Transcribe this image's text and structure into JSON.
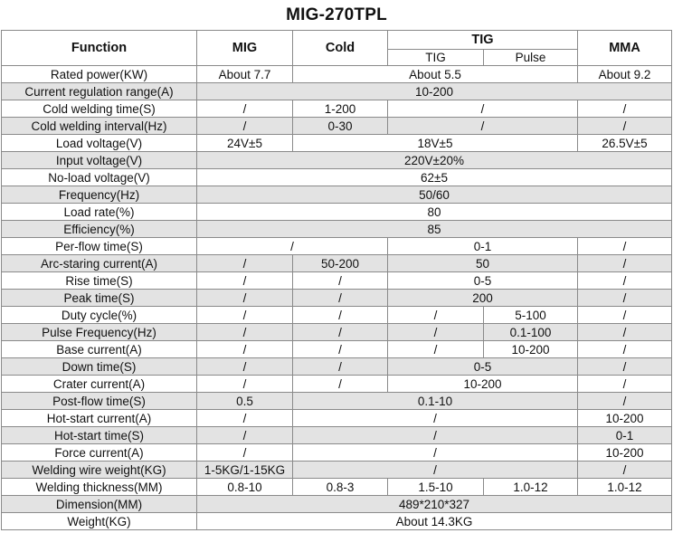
{
  "title": "MIG-270TPL",
  "header": {
    "function": "Function",
    "mig": "MIG",
    "cold": "Cold",
    "tig": "TIG",
    "tig_sub": "TIG",
    "pulse_sub": "Pulse",
    "mma": "MMA"
  },
  "rows": [
    {
      "label": "Rated power(KW)",
      "cells": [
        {
          "text": "About 7.7",
          "span": 1
        },
        {
          "text": "About 5.5",
          "span": 3
        },
        {
          "text": "About 9.2",
          "span": 1
        }
      ]
    },
    {
      "label": "Current regulation range(A)",
      "cells": [
        {
          "text": "10-200",
          "span": 5
        }
      ]
    },
    {
      "label": "Cold welding time(S)",
      "cells": [
        {
          "text": "/",
          "span": 1
        },
        {
          "text": "1-200",
          "span": 1
        },
        {
          "text": "/",
          "span": 2
        },
        {
          "text": "/",
          "span": 1
        }
      ]
    },
    {
      "label": "Cold welding interval(Hz)",
      "cells": [
        {
          "text": "/",
          "span": 1
        },
        {
          "text": "0-30",
          "span": 1
        },
        {
          "text": "/",
          "span": 2
        },
        {
          "text": "/",
          "span": 1
        }
      ]
    },
    {
      "label": "Load voltage(V)",
      "cells": [
        {
          "text": "24V±5",
          "span": 1
        },
        {
          "text": "18V±5",
          "span": 3
        },
        {
          "text": "26.5V±5",
          "span": 1
        }
      ]
    },
    {
      "label": "Input voltage(V)",
      "cells": [
        {
          "text": "220V±20%",
          "span": 5
        }
      ]
    },
    {
      "label": "No-load voltage(V)",
      "cells": [
        {
          "text": "62±5",
          "span": 5
        }
      ]
    },
    {
      "label": "Frequency(Hz)",
      "cells": [
        {
          "text": "50/60",
          "span": 5
        }
      ]
    },
    {
      "label": "Load rate(%)",
      "cells": [
        {
          "text": "80",
          "span": 5
        }
      ]
    },
    {
      "label": "Efficiency(%)",
      "cells": [
        {
          "text": "85",
          "span": 5
        }
      ]
    },
    {
      "label": "Per-flow time(S)",
      "cells": [
        {
          "text": "/",
          "span": 2
        },
        {
          "text": "0-1",
          "span": 2
        },
        {
          "text": "/",
          "span": 1
        }
      ]
    },
    {
      "label": "Arc-staring current(A)",
      "cells": [
        {
          "text": "/",
          "span": 1
        },
        {
          "text": "50-200",
          "span": 1
        },
        {
          "text": "50",
          "span": 2
        },
        {
          "text": "/",
          "span": 1
        }
      ]
    },
    {
      "label": "Rise time(S)",
      "cells": [
        {
          "text": "/",
          "span": 1
        },
        {
          "text": "/",
          "span": 1
        },
        {
          "text": "0-5",
          "span": 2
        },
        {
          "text": "/",
          "span": 1
        }
      ]
    },
    {
      "label": "Peak time(S)",
      "cells": [
        {
          "text": "/",
          "span": 1
        },
        {
          "text": "/",
          "span": 1
        },
        {
          "text": "200",
          "span": 2
        },
        {
          "text": "/",
          "span": 1
        }
      ]
    },
    {
      "label": "Duty cycle(%)",
      "cells": [
        {
          "text": "/",
          "span": 1
        },
        {
          "text": "/",
          "span": 1
        },
        {
          "text": "/",
          "span": 1
        },
        {
          "text": "5-100",
          "span": 1
        },
        {
          "text": "/",
          "span": 1
        }
      ]
    },
    {
      "label": "Pulse Frequency(Hz)",
      "cells": [
        {
          "text": "/",
          "span": 1
        },
        {
          "text": "/",
          "span": 1
        },
        {
          "text": "/",
          "span": 1
        },
        {
          "text": "0.1-100",
          "span": 1
        },
        {
          "text": "/",
          "span": 1
        }
      ]
    },
    {
      "label": "Base current(A)",
      "cells": [
        {
          "text": "/",
          "span": 1
        },
        {
          "text": "/",
          "span": 1
        },
        {
          "text": "/",
          "span": 1
        },
        {
          "text": "10-200",
          "span": 1
        },
        {
          "text": "/",
          "span": 1
        }
      ]
    },
    {
      "label": "Down time(S)",
      "cells": [
        {
          "text": "/",
          "span": 1
        },
        {
          "text": "/",
          "span": 1
        },
        {
          "text": "0-5",
          "span": 2
        },
        {
          "text": "/",
          "span": 1
        }
      ]
    },
    {
      "label": "Crater current(A)",
      "cells": [
        {
          "text": "/",
          "span": 1
        },
        {
          "text": "/",
          "span": 1
        },
        {
          "text": "10-200",
          "span": 2
        },
        {
          "text": "/",
          "span": 1
        }
      ]
    },
    {
      "label": "Post-flow time(S)",
      "cells": [
        {
          "text": "0.5",
          "span": 1
        },
        {
          "text": "0.1-10",
          "span": 3
        },
        {
          "text": "/",
          "span": 1
        }
      ]
    },
    {
      "label": "Hot-start current(A)",
      "cells": [
        {
          "text": "/",
          "span": 1
        },
        {
          "text": "/",
          "span": 3
        },
        {
          "text": "10-200",
          "span": 1
        }
      ]
    },
    {
      "label": "Hot-start time(S)",
      "cells": [
        {
          "text": "/",
          "span": 1
        },
        {
          "text": "/",
          "span": 3
        },
        {
          "text": "0-1",
          "span": 1
        }
      ]
    },
    {
      "label": "Force current(A)",
      "cells": [
        {
          "text": "/",
          "span": 1
        },
        {
          "text": "/",
          "span": 3
        },
        {
          "text": "10-200",
          "span": 1
        }
      ]
    },
    {
      "label": "Welding wire weight(KG)",
      "cells": [
        {
          "text": "1-5KG/1-15KG",
          "span": 1
        },
        {
          "text": "/",
          "span": 3
        },
        {
          "text": "/",
          "span": 1
        }
      ]
    },
    {
      "label": "Welding thickness(MM)",
      "cells": [
        {
          "text": "0.8-10",
          "span": 1
        },
        {
          "text": "0.8-3",
          "span": 1
        },
        {
          "text": "1.5-10",
          "span": 1
        },
        {
          "text": "1.0-12",
          "span": 1
        },
        {
          "text": "1.0-12",
          "span": 1
        }
      ]
    },
    {
      "label": "Dimension(MM)",
      "cells": [
        {
          "text": "489*210*327",
          "span": 5
        }
      ]
    },
    {
      "label": "Weight(KG)",
      "cells": [
        {
          "text": "About 14.3KG",
          "span": 5
        }
      ]
    }
  ]
}
